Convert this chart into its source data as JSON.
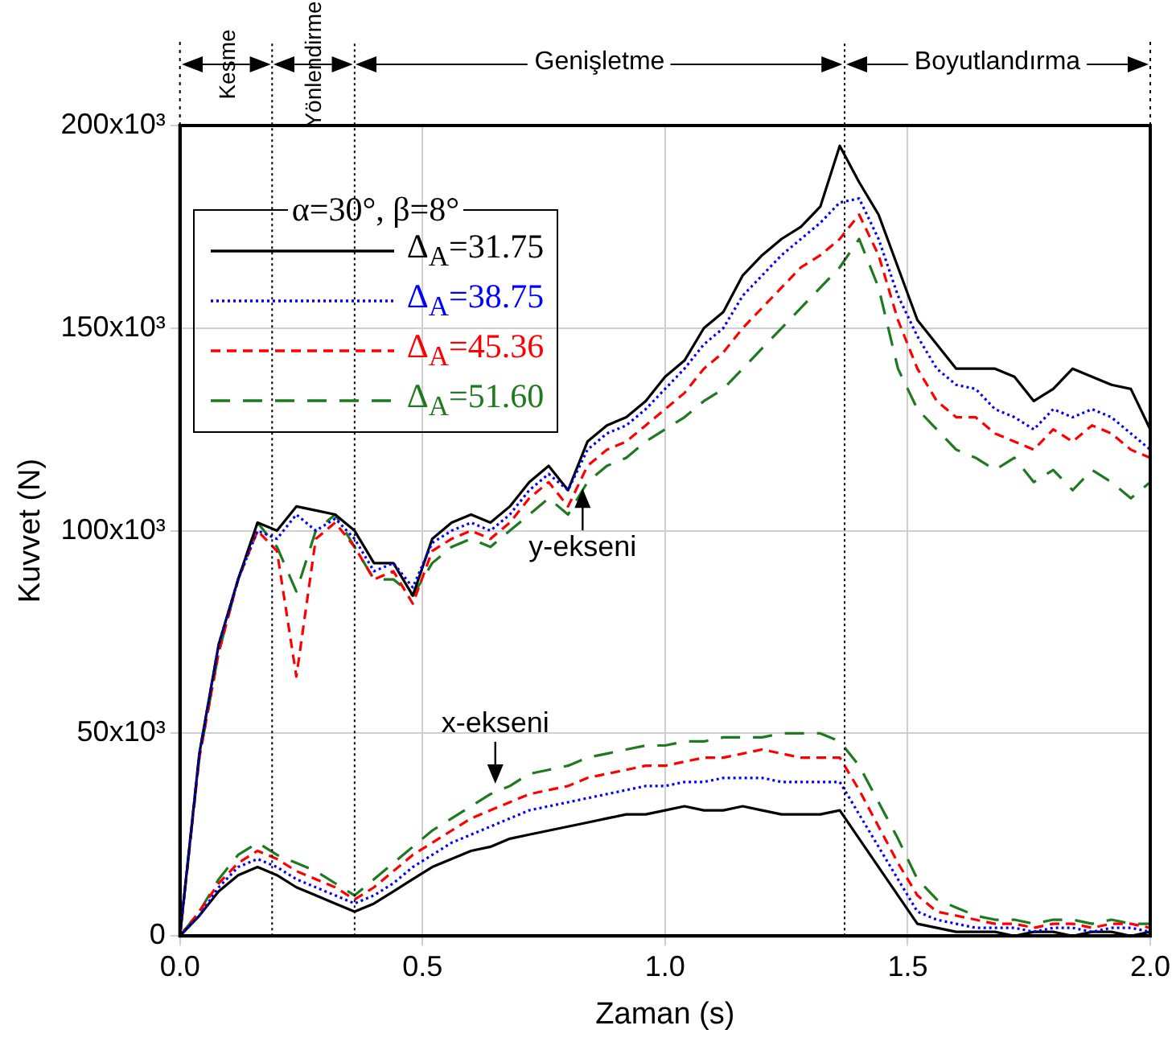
{
  "chart_data": {
    "type": "line",
    "xlabel": "Zaman (s)",
    "ylabel": "Kuvvet (N)",
    "legend_title": "α=30°, β=8°",
    "legend": "top left",
    "grid": true,
    "marker": "none",
    "x": [
      0,
      0.04,
      0.08,
      0.12,
      0.16,
      0.2,
      0.24,
      0.28,
      0.32,
      0.36,
      0.4,
      0.44,
      0.48,
      0.52,
      0.56,
      0.6,
      0.64,
      0.68,
      0.72,
      0.76,
      0.8,
      0.84,
      0.88,
      0.92,
      0.96,
      1,
      1.04,
      1.08,
      1.12,
      1.16,
      1.2,
      1.24,
      1.28,
      1.32,
      1.36,
      1.4,
      1.44,
      1.48,
      1.52,
      1.56,
      1.6,
      1.64,
      1.68,
      1.72,
      1.76,
      1.8,
      1.84,
      1.88,
      1.92,
      1.96,
      2
    ],
    "xlim": [
      0,
      2
    ],
    "xticks": [
      {
        "value": 0,
        "label": "0.0"
      },
      {
        "value": 0.5,
        "label": "0.5"
      },
      {
        "value": 1,
        "label": "1.0"
      },
      {
        "value": 1.5,
        "label": "1.5"
      },
      {
        "value": 2,
        "label": "2.0"
      }
    ],
    "ylim": [
      0,
      200000
    ],
    "yticks": [
      {
        "value": 0,
        "label": "0"
      },
      {
        "value": 50000,
        "label": "50x10³"
      },
      {
        "value": 100000,
        "label": "100x10³"
      },
      {
        "value": 150000,
        "label": "150x10³"
      },
      {
        "value": 200000,
        "label": "200x10³"
      }
    ],
    "series": [
      {
        "name": "Δ$_{A}$=31.75",
        "color": "#000000",
        "line_style": "solid",
        "values": [
          0,
          45000,
          72000,
          88000,
          102000,
          100000,
          106000,
          105000,
          104000,
          100000,
          92000,
          92000,
          84000,
          98000,
          102000,
          104000,
          102000,
          106000,
          112000,
          116000,
          110000,
          122000,
          126000,
          128000,
          132000,
          138000,
          142000,
          150000,
          154000,
          163000,
          168000,
          172000,
          175000,
          180000,
          195000,
          186000,
          178000,
          165000,
          152000,
          146000,
          140000,
          140000,
          140000,
          138000,
          132000,
          135000,
          140000,
          138000,
          136000,
          135000,
          125000
        ]
      },
      {
        "name": "Δ$_{A}$=38.75",
        "color": "#0000ff",
        "line_style": "dotted",
        "values": [
          0,
          45000,
          72000,
          88000,
          100000,
          98000,
          104000,
          100000,
          103000,
          98000,
          90000,
          92000,
          86000,
          97000,
          100000,
          102000,
          100000,
          104000,
          110000,
          114000,
          110000,
          120000,
          124000,
          126000,
          130000,
          135000,
          140000,
          146000,
          150000,
          158000,
          163000,
          168000,
          172000,
          176000,
          181000,
          182000,
          172000,
          158000,
          148000,
          140000,
          136000,
          135000,
          130000,
          128000,
          125000,
          130000,
          128000,
          130000,
          128000,
          124000,
          120000
        ]
      },
      {
        "name": "Δ$_{A}$=45.36",
        "color": "#ff0000",
        "line_style": "dashed",
        "values": [
          0,
          44000,
          70000,
          88000,
          100000,
          95000,
          64000,
          98000,
          102000,
          96000,
          88000,
          90000,
          82000,
          95000,
          98000,
          100000,
          98000,
          102000,
          108000,
          112000,
          106000,
          116000,
          120000,
          122000,
          126000,
          130000,
          134000,
          140000,
          144000,
          150000,
          155000,
          160000,
          165000,
          168000,
          172000,
          178000,
          168000,
          152000,
          140000,
          132000,
          128000,
          128000,
          124000,
          122000,
          120000,
          125000,
          122000,
          126000,
          124000,
          120000,
          118000
        ]
      },
      {
        "name": "Δ$_{A}$=51.60",
        "color": "#1e7a1e",
        "line_style": "dashed",
        "values": [
          0,
          44000,
          70000,
          88000,
          102000,
          96000,
          85000,
          100000,
          104000,
          96000,
          88000,
          88000,
          84000,
          92000,
          96000,
          98000,
          96000,
          100000,
          104000,
          108000,
          104000,
          112000,
          116000,
          118000,
          122000,
          125000,
          128000,
          132000,
          135000,
          140000,
          145000,
          150000,
          155000,
          160000,
          165000,
          172000,
          160000,
          140000,
          130000,
          125000,
          120000,
          118000,
          115000,
          118000,
          112000,
          115000,
          110000,
          115000,
          112000,
          108000,
          112000
        ]
      },
      {
        "color": "#000000",
        "line_style": "solid",
        "values": [
          0,
          5000,
          11000,
          15000,
          17000,
          15000,
          12000,
          10000,
          8000,
          6000,
          8000,
          11000,
          14000,
          17000,
          19000,
          21000,
          22000,
          24000,
          25000,
          26000,
          27000,
          28000,
          29000,
          30000,
          30000,
          31000,
          32000,
          31000,
          31000,
          32000,
          31000,
          30000,
          30000,
          30000,
          31000,
          24000,
          17000,
          10000,
          3000,
          2000,
          1000,
          1000,
          1000,
          0,
          1000,
          1000,
          0,
          1000,
          1000,
          0,
          1000
        ]
      },
      {
        "color": "#0000ff",
        "line_style": "dotted",
        "values": [
          0,
          5000,
          12000,
          17000,
          19000,
          17000,
          14000,
          12000,
          10000,
          8000,
          10000,
          13000,
          17000,
          20000,
          23000,
          25000,
          27000,
          29000,
          31000,
          32000,
          33000,
          34000,
          35000,
          36000,
          37000,
          37000,
          38000,
          38000,
          39000,
          39000,
          39000,
          38000,
          38000,
          38000,
          38000,
          30000,
          22000,
          14000,
          6000,
          4000,
          3000,
          2000,
          2000,
          2000,
          1000,
          2000,
          2000,
          1000,
          2000,
          2000,
          1000
        ]
      },
      {
        "color": "#ff0000",
        "line_style": "dashed",
        "values": [
          0,
          6000,
          13000,
          18000,
          21000,
          19000,
          16000,
          14000,
          12000,
          9000,
          12000,
          16000,
          20000,
          23000,
          26000,
          29000,
          31000,
          33000,
          35000,
          36000,
          37000,
          39000,
          40000,
          41000,
          42000,
          42000,
          43000,
          44000,
          44000,
          45000,
          46000,
          45000,
          44000,
          44000,
          44000,
          36000,
          27000,
          18000,
          10000,
          6000,
          5000,
          4000,
          3000,
          3000,
          2000,
          3000,
          3000,
          2000,
          3000,
          3000,
          2000
        ]
      },
      {
        "color": "#1e7a1e",
        "line_style": "dashed",
        "values": [
          0,
          6000,
          14000,
          20000,
          23000,
          20000,
          18000,
          16000,
          13000,
          10000,
          14000,
          18000,
          22000,
          26000,
          29000,
          32000,
          35000,
          37000,
          40000,
          41000,
          42000,
          44000,
          45000,
          46000,
          47000,
          47000,
          48000,
          48000,
          49000,
          49000,
          49000,
          50000,
          50000,
          50000,
          48000,
          42000,
          33000,
          24000,
          14000,
          9000,
          7000,
          5000,
          4000,
          4000,
          3000,
          4000,
          4000,
          3000,
          4000,
          3000,
          3000
        ]
      }
    ],
    "ref_lines": [
      {
        "axis": "x",
        "value": 0.19,
        "line_style": "dotted"
      },
      {
        "axis": "x",
        "value": 0.36,
        "line_style": "dotted"
      },
      {
        "axis": "x",
        "value": 1.37,
        "line_style": "dotted"
      }
    ],
    "annotations": [
      "Kesme",
      "Yönlendirme",
      "Genişletme",
      "Boyutlandırma",
      {
        "text": "y-ekseni",
        "x": 0.83,
        "y": 112000
      },
      {
        "text": "x-ekseni",
        "x": 0.65,
        "y": 36000
      }
    ]
  }
}
